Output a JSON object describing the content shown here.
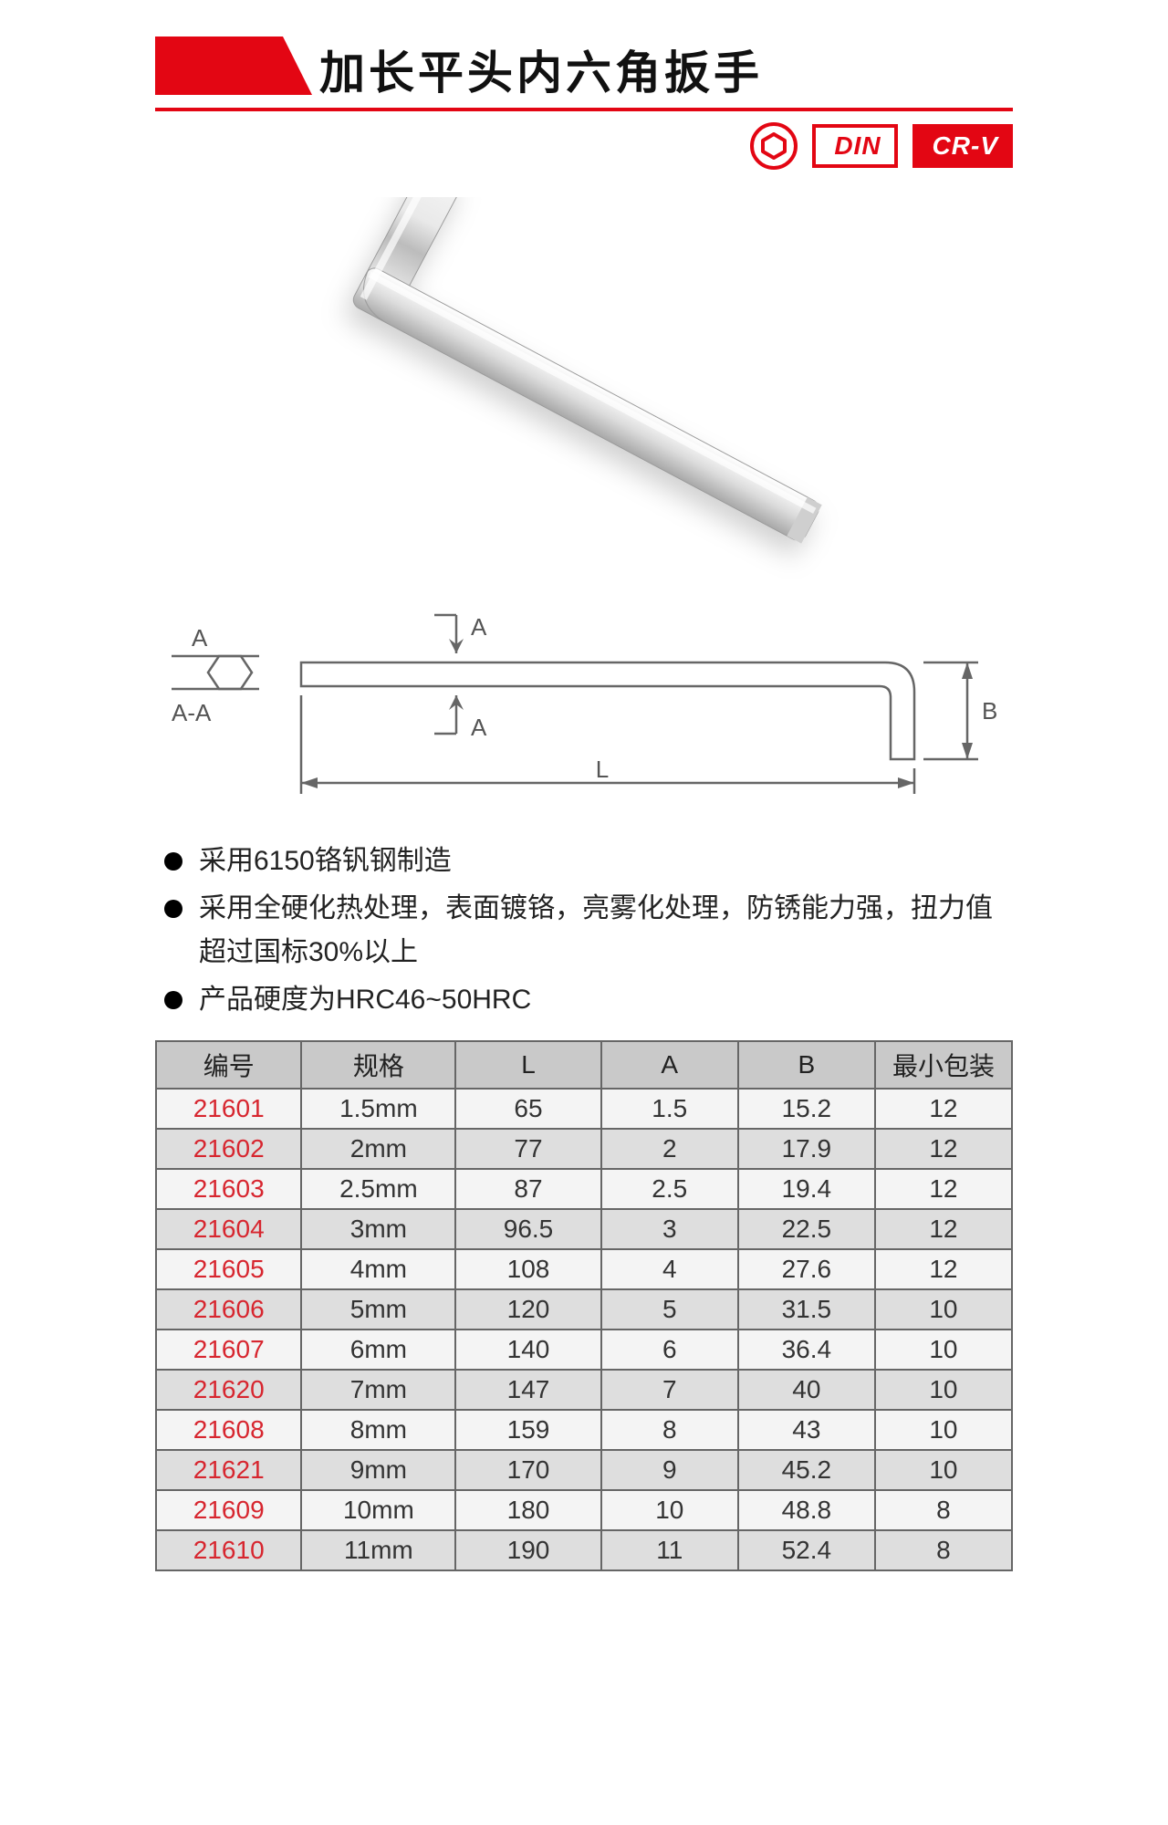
{
  "header": {
    "title": "加长平头内六角扳手",
    "accent_color": "#e30613",
    "badges": [
      {
        "label": "DIN",
        "style": "white"
      },
      {
        "label": "CR-V",
        "style": "red"
      }
    ]
  },
  "diagram": {
    "label_A_top": "A",
    "label_A_bot": "A",
    "section_label_top": "A",
    "section_label_bot": "A-A",
    "L_label": "L",
    "B_label": "B",
    "line_color": "#666666",
    "text_color": "#555555",
    "text_fontsize": 26
  },
  "bullets": [
    "采用6150铬钒钢制造",
    "采用全硬化热处理，表面镀铬，亮雾化处理，防锈能力强，扭力值超过国标30%以上",
    "产品硬度为HRC46~50HRC"
  ],
  "table": {
    "header_bg": "#c9c9c9",
    "row_bg_odd": "#f4f4f4",
    "row_bg_even": "#dedede",
    "border_color": "#666666",
    "code_color": "#d7262f",
    "columns": [
      "编号",
      "规格",
      "L",
      "A",
      "B",
      "最小包装"
    ],
    "col_widths_pct": [
      17,
      18,
      17,
      16,
      16,
      16
    ],
    "rows": [
      [
        "21601",
        "1.5mm",
        "65",
        "1.5",
        "15.2",
        "12"
      ],
      [
        "21602",
        "2mm",
        "77",
        "2",
        "17.9",
        "12"
      ],
      [
        "21603",
        "2.5mm",
        "87",
        "2.5",
        "19.4",
        "12"
      ],
      [
        "21604",
        "3mm",
        "96.5",
        "3",
        "22.5",
        "12"
      ],
      [
        "21605",
        "4mm",
        "108",
        "4",
        "27.6",
        "12"
      ],
      [
        "21606",
        "5mm",
        "120",
        "5",
        "31.5",
        "10"
      ],
      [
        "21607",
        "6mm",
        "140",
        "6",
        "36.4",
        "10"
      ],
      [
        "21620",
        "7mm",
        "147",
        "7",
        "40",
        "10"
      ],
      [
        "21608",
        "8mm",
        "159",
        "8",
        "43",
        "10"
      ],
      [
        "21621",
        "9mm",
        "170",
        "9",
        "45.2",
        "10"
      ],
      [
        "21609",
        "10mm",
        "180",
        "10",
        "48.8",
        "8"
      ],
      [
        "21610",
        "11mm",
        "190",
        "11",
        "52.4",
        "8"
      ]
    ]
  }
}
